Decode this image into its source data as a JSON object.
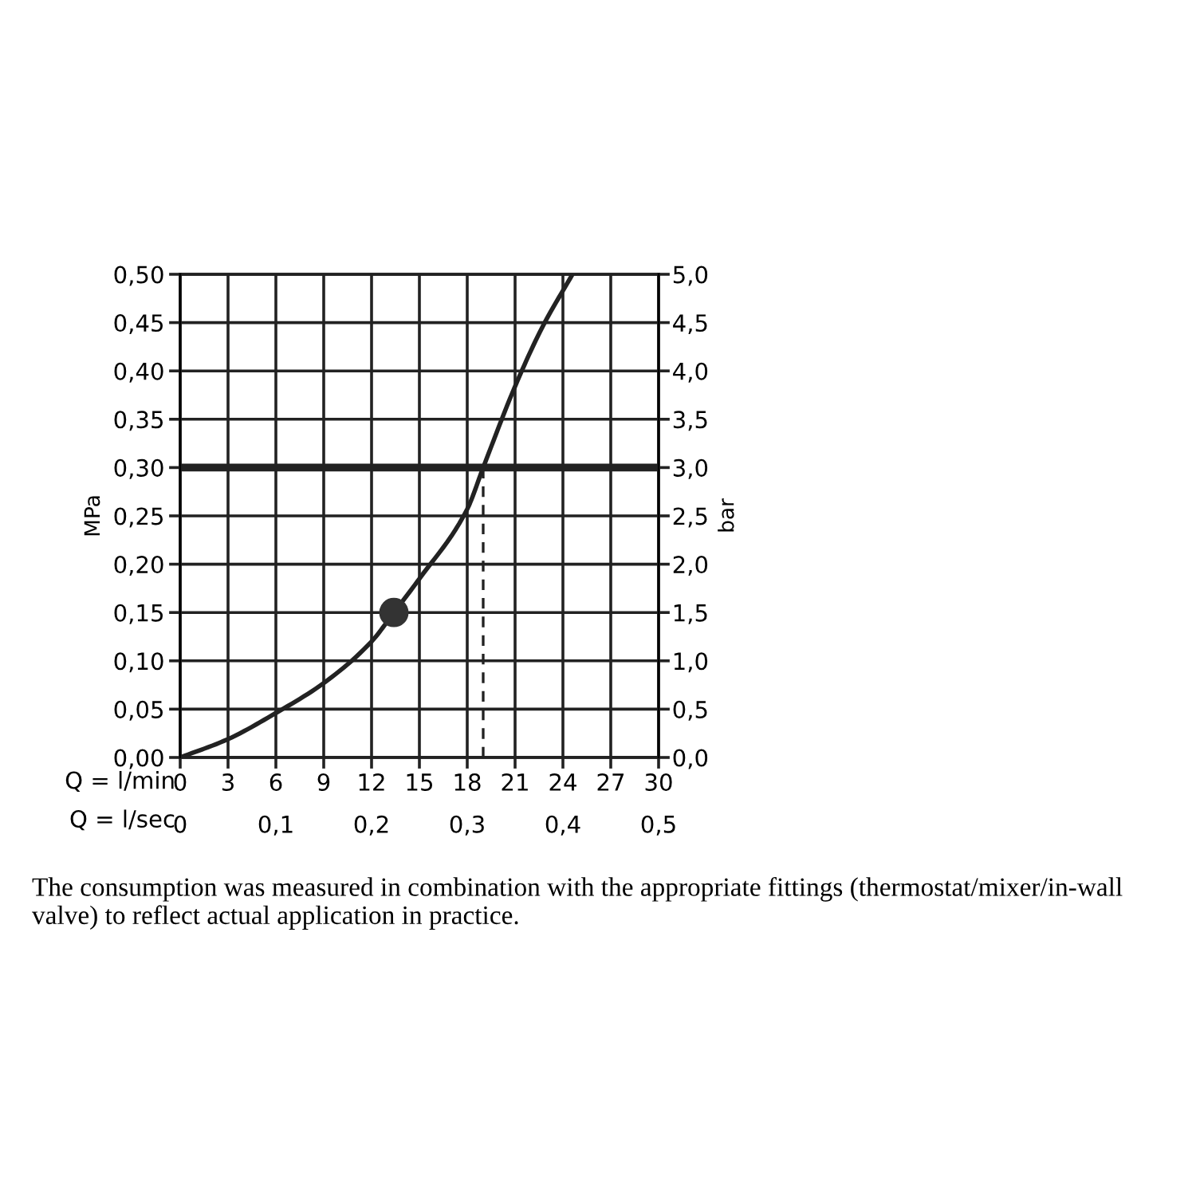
{
  "chart_data": {
    "type": "line",
    "xlabel": "Q = l/min",
    "x2label": "Q = l/sec",
    "ylabel": "MPa",
    "y2label": "bar",
    "x": [
      0,
      3,
      6,
      9,
      12,
      13.4,
      15,
      18,
      19,
      21,
      22.7,
      24.6
    ],
    "series": [
      {
        "color": "#222222",
        "line_style": "solid",
        "values": [
          0,
          0.019,
          0.046,
          0.077,
          0.12,
          0.15,
          0.185,
          0.257,
          0.3,
          0.384,
          0.445,
          0.5
        ]
      },
      {
        "type": "scatter",
        "color": "#333333",
        "marker": "circle",
        "values": [
          null,
          null,
          null,
          null,
          null,
          0.15,
          null,
          null,
          null,
          null,
          null,
          null
        ]
      }
    ],
    "xlim": [
      0,
      30
    ],
    "xticks": [
      0,
      3,
      6,
      9,
      12,
      15,
      18,
      21,
      24,
      27,
      30
    ],
    "x2lim": [
      0,
      0.5
    ],
    "x2ticks": [
      {
        "value": 0,
        "label": "0"
      },
      {
        "value": 0.1,
        "label": "0,1"
      },
      {
        "value": 0.2,
        "label": "0,2"
      },
      {
        "value": 0.3,
        "label": "0,3"
      },
      {
        "value": 0.4,
        "label": "0,4"
      },
      {
        "value": 0.5,
        "label": "0,5"
      }
    ],
    "ylim": [
      0,
      0.5
    ],
    "yticks": [
      {
        "value": 0,
        "label": "0,00"
      },
      {
        "value": 0.05,
        "label": "0,05"
      },
      {
        "value": 0.1,
        "label": "0,10"
      },
      {
        "value": 0.15,
        "label": "0,15"
      },
      {
        "value": 0.2,
        "label": "0,20"
      },
      {
        "value": 0.25,
        "label": "0,25"
      },
      {
        "value": 0.3,
        "label": "0,30"
      },
      {
        "value": 0.35,
        "label": "0,35"
      },
      {
        "value": 0.4,
        "label": "0,40"
      },
      {
        "value": 0.45,
        "label": "0,45"
      },
      {
        "value": 0.5,
        "label": "0,50"
      }
    ],
    "y2lim": [
      0,
      5
    ],
    "y2ticks": [
      {
        "value": 0,
        "label": "0,0"
      },
      {
        "value": 0.5,
        "label": "0,5"
      },
      {
        "value": 1,
        "label": "1,0"
      },
      {
        "value": 1.5,
        "label": "1,5"
      },
      {
        "value": 2,
        "label": "2,0"
      },
      {
        "value": 2.5,
        "label": "2,5"
      },
      {
        "value": 3,
        "label": "3,0"
      },
      {
        "value": 3.5,
        "label": "3,5"
      },
      {
        "value": 4,
        "label": "4,0"
      },
      {
        "value": 4.5,
        "label": "4,5"
      },
      {
        "value": 5,
        "label": "5,0"
      }
    ],
    "ref_lines": [
      {
        "axis": "y",
        "value": 0.3,
        "color": "#222222",
        "line_style": "solid"
      },
      {
        "axis": "x",
        "value": 19,
        "color": "#222222",
        "line_style": "dashed"
      }
    ],
    "grid": true,
    "legend": false,
    "annotations": [
      "The consumption was measured in combination with the appropriate fittings (thermostat/mixer/in-wall valve) to reflect actual application in practice."
    ]
  }
}
